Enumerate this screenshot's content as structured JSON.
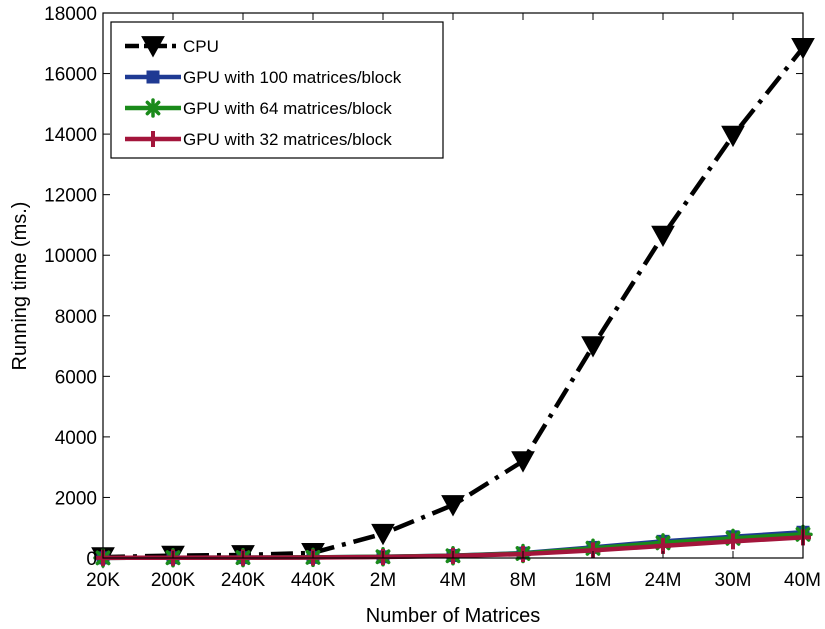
{
  "chart_data": {
    "type": "line",
    "title": "",
    "xlabel": "Number of Matrices",
    "ylabel": "Running time (ms.)",
    "categories": [
      "20K",
      "200K",
      "240K",
      "440K",
      "2M",
      "4M",
      "8M",
      "16M",
      "24M",
      "30M",
      "40M"
    ],
    "ylim": [
      0,
      18000
    ],
    "yticks": [
      0,
      2000,
      4000,
      6000,
      8000,
      10000,
      12000,
      14000,
      16000,
      18000
    ],
    "grid": false,
    "legend_position": "top-left",
    "series": [
      {
        "name": "CPU",
        "values": [
          30,
          80,
          100,
          170,
          800,
          1750,
          3200,
          7000,
          10650,
          13950,
          16850
        ],
        "color": "#000000",
        "line_style": "dash-dot",
        "marker": "triangle-down"
      },
      {
        "name": "GPU with 100 matrices/block",
        "values": [
          5,
          10,
          12,
          20,
          40,
          80,
          160,
          350,
          550,
          700,
          850
        ],
        "color": "#1f3a93",
        "line_style": "solid",
        "marker": "square"
      },
      {
        "name": "GPU with  64  matrices/block",
        "values": [
          5,
          10,
          12,
          20,
          40,
          75,
          150,
          320,
          500,
          650,
          780
        ],
        "color": "#1a8a1a",
        "line_style": "solid",
        "marker": "asterisk"
      },
      {
        "name": "GPU with  32  matrices/block",
        "values": [
          5,
          9,
          11,
          18,
          35,
          70,
          130,
          250,
          400,
          550,
          680
        ],
        "color": "#a3153b",
        "line_style": "solid",
        "marker": "plus"
      }
    ]
  }
}
